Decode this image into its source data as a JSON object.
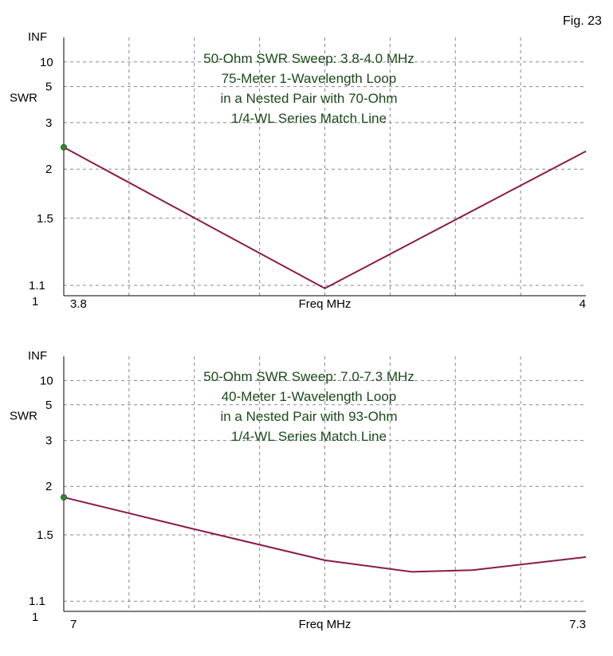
{
  "figure_label": "Fig. 23",
  "colors": {
    "curve": "#8b1a4a",
    "marker": "#2e8b2e",
    "grid": "#888888",
    "axis": "#000000",
    "title": "#1a4a1a"
  },
  "chart_data": [
    {
      "type": "line",
      "title": [
        "50-Ohm SWR Sweep: 3.8-4.0 MHz",
        "75-Meter 1-Wavelength Loop",
        "in a Nested Pair with 70-Ohm",
        "1/4-WL Series Match Line"
      ],
      "xlabel": "Freq MHz",
      "ylabel": "SWR",
      "x_ticks": [
        "3.8",
        "4"
      ],
      "y_ticks": [
        "INF",
        "10",
        "5",
        "3",
        "2",
        "1.5",
        "1.1",
        "1"
      ],
      "xlim": [
        3.8,
        4.0
      ],
      "ylim": [
        1,
        "INF"
      ],
      "grid": true,
      "series": [
        {
          "x": [
            3.8,
            3.9,
            4.0
          ],
          "y": [
            2.4,
            1.07,
            2.32
          ]
        }
      ],
      "marker": {
        "x": 3.8,
        "y": 2.4
      }
    },
    {
      "type": "line",
      "title": [
        "50-Ohm SWR Sweep: 7.0-7.3 MHz",
        "40-Meter 1-Wavelength Loop",
        "in a Nested Pair with 93-Ohm",
        "1/4-WL Series Match Line"
      ],
      "xlabel": "Freq MHz",
      "ylabel": "SWR",
      "x_ticks": [
        "7",
        "7.3"
      ],
      "y_ticks": [
        "INF",
        "10",
        "5",
        "3",
        "2",
        "1.5",
        "1.1",
        "1"
      ],
      "xlim": [
        7.0,
        7.3
      ],
      "ylim": [
        1,
        "INF"
      ],
      "grid": true,
      "series": [
        {
          "x": [
            7.0,
            7.075,
            7.15,
            7.2,
            7.235,
            7.3
          ],
          "y": [
            1.87,
            1.55,
            1.33,
            1.26,
            1.27,
            1.35
          ]
        }
      ],
      "marker": {
        "x": 7.0,
        "y": 1.87
      }
    }
  ]
}
